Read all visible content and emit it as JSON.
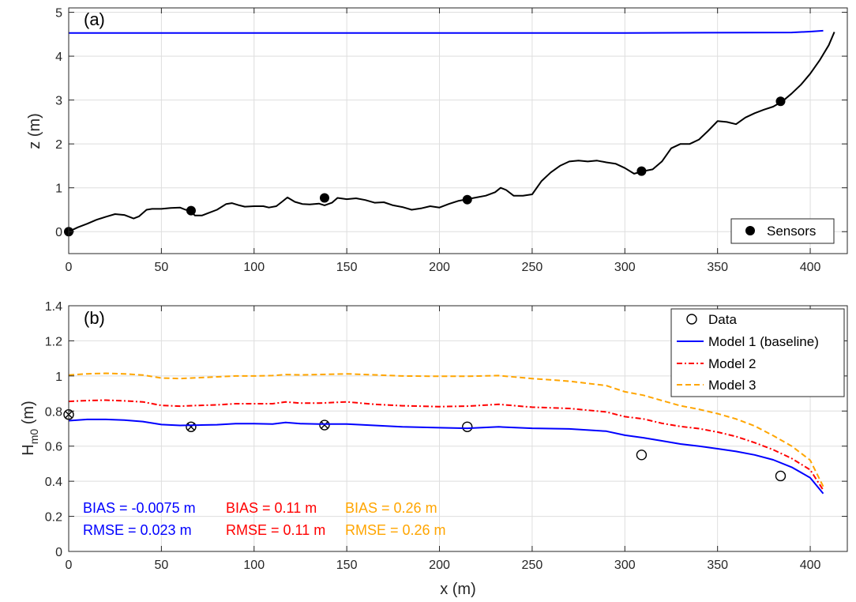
{
  "figure": {
    "panel_a": {
      "label": "(a)",
      "ylabel": "z (m)",
      "legend": [
        {
          "text": "Sensors",
          "marker": "filled-circle",
          "color": "#000000"
        }
      ]
    },
    "panel_b": {
      "label": "(b)",
      "ylabel_main": "H",
      "ylabel_sub": "m0",
      "ylabel_unit": " (m)",
      "xlabel": "x (m)",
      "legend": [
        {
          "text": "Data",
          "style": "open-circle",
          "color": "#000000"
        },
        {
          "text": "Model 1 (baseline)",
          "style": "solid",
          "color": "#0000ff"
        },
        {
          "text": "Model 2",
          "style": "dashdot",
          "color": "#ff0000"
        },
        {
          "text": "Model 3",
          "style": "dashed",
          "color": "#ffa500"
        }
      ],
      "stats": [
        {
          "bias": "BIAS = -0.0075 m",
          "rmse": "RMSE = 0.023 m",
          "color": "#0000ff"
        },
        {
          "bias": "BIAS = 0.11 m",
          "rmse": "RMSE = 0.11 m",
          "color": "#ff0000"
        },
        {
          "bias": "BIAS = 0.26 m",
          "rmse": "RMSE = 0.26 m",
          "color": "#ffa500"
        }
      ]
    }
  },
  "chart_data": [
    {
      "type": "line",
      "title": "",
      "xlabel": "",
      "ylabel": "z (m)",
      "xlim": [
        0,
        420
      ],
      "ylim": [
        -0.5,
        5.1
      ],
      "xticks": [
        0,
        50,
        100,
        150,
        200,
        250,
        300,
        350,
        400
      ],
      "yticks": [
        0,
        1,
        2,
        3,
        4,
        5
      ],
      "grid": true,
      "legend_position": "bottom-right",
      "series": [
        {
          "style": "line",
          "color": "#0000ff",
          "x": [
            0,
            100,
            200,
            300,
            390,
            400,
            407
          ],
          "y": [
            4.53,
            4.53,
            4.53,
            4.53,
            4.54,
            4.56,
            4.58
          ]
        },
        {
          "style": "line",
          "color": "#000000",
          "x": [
            0,
            5,
            10,
            15,
            20,
            25,
            30,
            35,
            38,
            42,
            45,
            50,
            55,
            60,
            63,
            66,
            68,
            72,
            75,
            80,
            85,
            88,
            92,
            95,
            100,
            105,
            108,
            112,
            115,
            118,
            122,
            126,
            130,
            135,
            138,
            142,
            145,
            150,
            155,
            160,
            165,
            170,
            175,
            180,
            185,
            190,
            195,
            200,
            205,
            210,
            215,
            220,
            225,
            230,
            233,
            236,
            240,
            245,
            250,
            255,
            260,
            265,
            270,
            275,
            280,
            285,
            290,
            295,
            300,
            305,
            310,
            315,
            320,
            325,
            330,
            335,
            340,
            345,
            350,
            355,
            360,
            365,
            370,
            375,
            380,
            385,
            390,
            395,
            400,
            405,
            410,
            413
          ],
          "y": [
            0.0,
            0.1,
            0.18,
            0.27,
            0.34,
            0.4,
            0.38,
            0.3,
            0.35,
            0.5,
            0.52,
            0.52,
            0.54,
            0.55,
            0.5,
            0.48,
            0.37,
            0.37,
            0.42,
            0.5,
            0.63,
            0.65,
            0.6,
            0.57,
            0.58,
            0.58,
            0.55,
            0.58,
            0.68,
            0.78,
            0.68,
            0.63,
            0.62,
            0.64,
            0.6,
            0.66,
            0.77,
            0.74,
            0.76,
            0.72,
            0.66,
            0.67,
            0.6,
            0.56,
            0.5,
            0.53,
            0.58,
            0.55,
            0.63,
            0.7,
            0.74,
            0.78,
            0.82,
            0.9,
            1.0,
            0.95,
            0.82,
            0.82,
            0.85,
            1.15,
            1.35,
            1.5,
            1.6,
            1.62,
            1.6,
            1.62,
            1.58,
            1.55,
            1.45,
            1.32,
            1.38,
            1.42,
            1.6,
            1.9,
            2.0,
            2.0,
            2.1,
            2.3,
            2.52,
            2.5,
            2.45,
            2.6,
            2.7,
            2.78,
            2.85,
            2.97,
            3.15,
            3.35,
            3.6,
            3.9,
            4.25,
            4.55
          ]
        },
        {
          "name": "Sensors",
          "style": "filled-circle",
          "color": "#000000",
          "x": [
            0,
            66,
            138,
            215,
            309,
            384
          ],
          "y": [
            0.0,
            0.48,
            0.77,
            0.73,
            1.38,
            2.97
          ]
        }
      ]
    },
    {
      "type": "line",
      "title": "",
      "xlabel": "x (m)",
      "ylabel": "Hm0 (m)",
      "xlim": [
        0,
        420
      ],
      "ylim": [
        0,
        1.4
      ],
      "xticks": [
        0,
        50,
        100,
        150,
        200,
        250,
        300,
        350,
        400
      ],
      "yticks": [
        0,
        0.2,
        0.4,
        0.6,
        0.8,
        1,
        1.2,
        1.4
      ],
      "grid": true,
      "legend_position": "top-right",
      "series": [
        {
          "name": "Data",
          "style": "open-circle",
          "color": "#000000",
          "x": [
            0,
            66,
            138,
            215,
            309,
            384
          ],
          "y": [
            0.78,
            0.71,
            0.72,
            0.71,
            0.55,
            0.43
          ]
        },
        {
          "style": "x-marker",
          "color": "#000000",
          "x": [
            0,
            66,
            138
          ],
          "y": [
            0.78,
            0.71,
            0.72
          ]
        },
        {
          "name": "Model 1 (baseline)",
          "style": "solid",
          "color": "#0000ff",
          "x": [
            0,
            10,
            20,
            30,
            40,
            50,
            60,
            70,
            80,
            90,
            100,
            110,
            117,
            125,
            135,
            150,
            165,
            180,
            200,
            215,
            232,
            250,
            270,
            290,
            300,
            310,
            320,
            330,
            340,
            350,
            360,
            370,
            380,
            390,
            400,
            407
          ],
          "y": [
            0.745,
            0.752,
            0.752,
            0.748,
            0.74,
            0.723,
            0.718,
            0.72,
            0.722,
            0.728,
            0.728,
            0.726,
            0.735,
            0.728,
            0.726,
            0.726,
            0.718,
            0.71,
            0.705,
            0.702,
            0.71,
            0.702,
            0.698,
            0.685,
            0.662,
            0.648,
            0.63,
            0.612,
            0.6,
            0.585,
            0.57,
            0.55,
            0.522,
            0.48,
            0.42,
            0.33
          ]
        },
        {
          "name": "Model 2",
          "style": "dashdot",
          "color": "#ff0000",
          "x": [
            0,
            10,
            20,
            30,
            40,
            50,
            60,
            70,
            80,
            90,
            100,
            110,
            117,
            125,
            135,
            150,
            165,
            180,
            200,
            215,
            232,
            250,
            270,
            290,
            300,
            310,
            320,
            330,
            340,
            350,
            360,
            370,
            380,
            390,
            400,
            407
          ],
          "y": [
            0.855,
            0.86,
            0.862,
            0.858,
            0.852,
            0.832,
            0.828,
            0.832,
            0.835,
            0.842,
            0.842,
            0.842,
            0.852,
            0.845,
            0.845,
            0.852,
            0.838,
            0.83,
            0.825,
            0.828,
            0.838,
            0.822,
            0.815,
            0.795,
            0.768,
            0.755,
            0.73,
            0.712,
            0.7,
            0.68,
            0.655,
            0.62,
            0.58,
            0.53,
            0.465,
            0.35
          ]
        },
        {
          "name": "Model 3",
          "style": "dashed",
          "color": "#ffa500",
          "x": [
            0,
            10,
            20,
            30,
            40,
            50,
            60,
            70,
            80,
            90,
            100,
            110,
            117,
            125,
            135,
            150,
            165,
            180,
            200,
            215,
            232,
            250,
            270,
            290,
            300,
            310,
            320,
            330,
            340,
            350,
            360,
            370,
            380,
            390,
            400,
            407
          ],
          "y": [
            1.005,
            1.012,
            1.015,
            1.012,
            1.005,
            0.988,
            0.985,
            0.99,
            0.995,
            1.0,
            1.0,
            1.002,
            1.008,
            1.006,
            1.008,
            1.012,
            1.006,
            1.0,
            0.998,
            0.998,
            1.002,
            0.985,
            0.97,
            0.945,
            0.91,
            0.89,
            0.86,
            0.83,
            0.81,
            0.785,
            0.755,
            0.715,
            0.66,
            0.6,
            0.52,
            0.37
          ]
        }
      ]
    }
  ]
}
